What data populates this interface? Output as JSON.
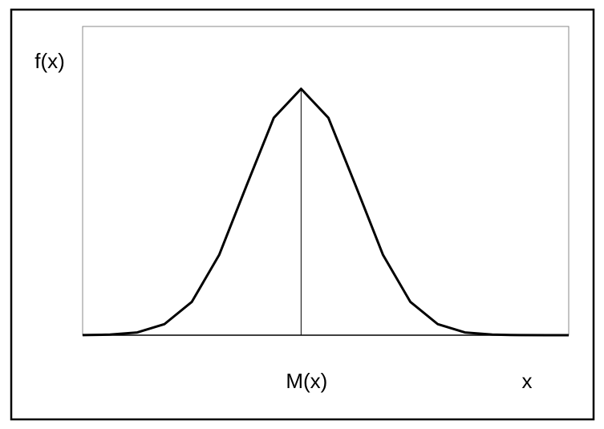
{
  "chart_data": {
    "type": "line",
    "ylabel": "f(x)",
    "xlabel": "x",
    "mean": {
      "value": 0,
      "label": "M(x)"
    },
    "x": [
      -4,
      -3.5,
      -3,
      -2.5,
      -2,
      -1.5,
      -1,
      -0.5,
      0,
      0.5,
      1,
      1.5,
      2,
      2.5,
      3,
      3.5,
      4,
      4.5,
      4.9
    ],
    "values": [
      0.0001,
      0.0009,
      0.0044,
      0.018,
      0.054,
      0.13,
      0.242,
      0.352,
      0.399,
      0.352,
      0.242,
      0.13,
      0.054,
      0.018,
      0.0044,
      0.0009,
      0.0001,
      0,
      0
    ],
    "color": "#000000",
    "xlim": [
      -4,
      4.9
    ],
    "ylim": [
      0,
      0.5
    ]
  }
}
